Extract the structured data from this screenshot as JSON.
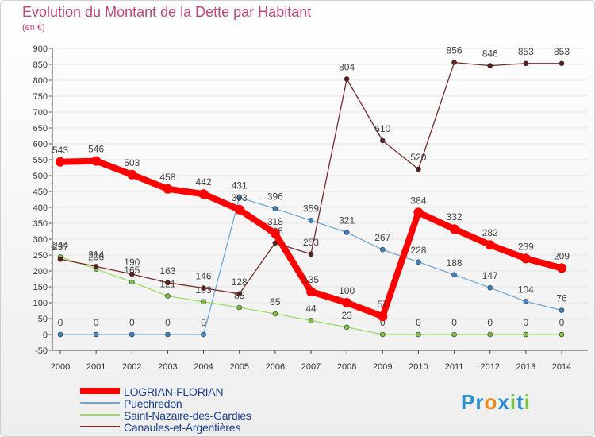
{
  "header": {
    "title": "Evolution du Montant de la Dette par Habitant",
    "unit": "(en €)"
  },
  "colors": {
    "title": "#c3447a",
    "legend_text": "#1a3f8f",
    "grid": "#e5e5e5",
    "axis": "#444444"
  },
  "legend": [
    {
      "label": "LOGRIAN-FLORIAN",
      "color": "#ff0000",
      "width": 8
    },
    {
      "label": "Puechredon",
      "color": "#6fa8d6",
      "width": 2
    },
    {
      "label": "Saint-Nazaire-des-Gardies",
      "color": "#99dd66",
      "width": 2
    },
    {
      "label": "Canaules-et-Argentières",
      "color": "#7a2a2a",
      "width": 2
    }
  ],
  "logo": {
    "letters": [
      "P",
      "r",
      "o",
      "x",
      "i",
      "t",
      "i"
    ],
    "colors": [
      "#2a8fd0",
      "#2a8fd0",
      "#e88a1a",
      "#2a8fd0",
      "#7cc242",
      "#2a8fd0",
      "#7cc242"
    ]
  },
  "chart_data": {
    "type": "line",
    "title": "Evolution du Montant de la Dette par Habitant",
    "ylabel": "(en €)",
    "xlabel": "",
    "ylim": [
      -50,
      900
    ],
    "yticks": [
      -50,
      0,
      50,
      100,
      150,
      200,
      250,
      300,
      350,
      400,
      450,
      500,
      550,
      600,
      650,
      700,
      750,
      800,
      850,
      900
    ],
    "categories": [
      "2000",
      "2001",
      "2002",
      "2003",
      "2004",
      "2005",
      "2006",
      "2007",
      "2008",
      "2009",
      "2010",
      "2011",
      "2012",
      "2013",
      "2014"
    ],
    "grid": true,
    "legend_position": "bottom-left",
    "series": [
      {
        "name": "Puechredon",
        "color": "#6fa8d6",
        "marker": "#3b84c4",
        "width": 1.3,
        "r": 3,
        "values": [
          0,
          0,
          0,
          0,
          0,
          431,
          396,
          359,
          321,
          267,
          228,
          188,
          147,
          104,
          76
        ],
        "labels": [
          "0",
          "0",
          "0",
          "0",
          "0",
          "431",
          "396",
          "359",
          "321",
          "267",
          "228",
          "188",
          "147",
          "104",
          "76"
        ]
      },
      {
        "name": "Saint-Nazaire-des-Gardies",
        "color": "#99dd66",
        "marker": "#7cc242",
        "width": 1.3,
        "r": 3,
        "values": [
          244,
          206,
          165,
          121,
          103,
          85,
          65,
          44,
          23,
          0,
          0,
          0,
          0,
          0,
          0
        ],
        "labels": [
          "244",
          "206",
          "165",
          "121",
          "103",
          "85",
          "65",
          "44",
          "23",
          "0",
          "0",
          "0",
          "0",
          "0",
          "0"
        ]
      },
      {
        "name": "Canaules-et-Argentières",
        "color": "#7a2a2a",
        "marker": "#5e1d1d",
        "width": 1.3,
        "r": 3,
        "values": [
          237,
          214,
          190,
          163,
          146,
          128,
          288,
          253,
          804,
          610,
          520,
          856,
          846,
          853,
          853
        ],
        "labels": [
          "237",
          "214",
          "190",
          "163",
          "146",
          "128",
          "288",
          "253",
          "804",
          "610",
          "520",
          "856",
          "846",
          "853",
          "853"
        ]
      },
      {
        "name": "LOGRIAN-FLORIAN",
        "color": "#ff0000",
        "marker": "#ff0000",
        "width": 8,
        "r": 6,
        "values": [
          543,
          546,
          503,
          458,
          442,
          393,
          318,
          135,
          100,
          57,
          384,
          332,
          282,
          239,
          209
        ],
        "labels": [
          "543",
          "546",
          "503",
          "458",
          "442",
          "393",
          "318",
          "135",
          "100",
          "57",
          "384",
          "332",
          "282",
          "239",
          "209"
        ]
      }
    ]
  }
}
